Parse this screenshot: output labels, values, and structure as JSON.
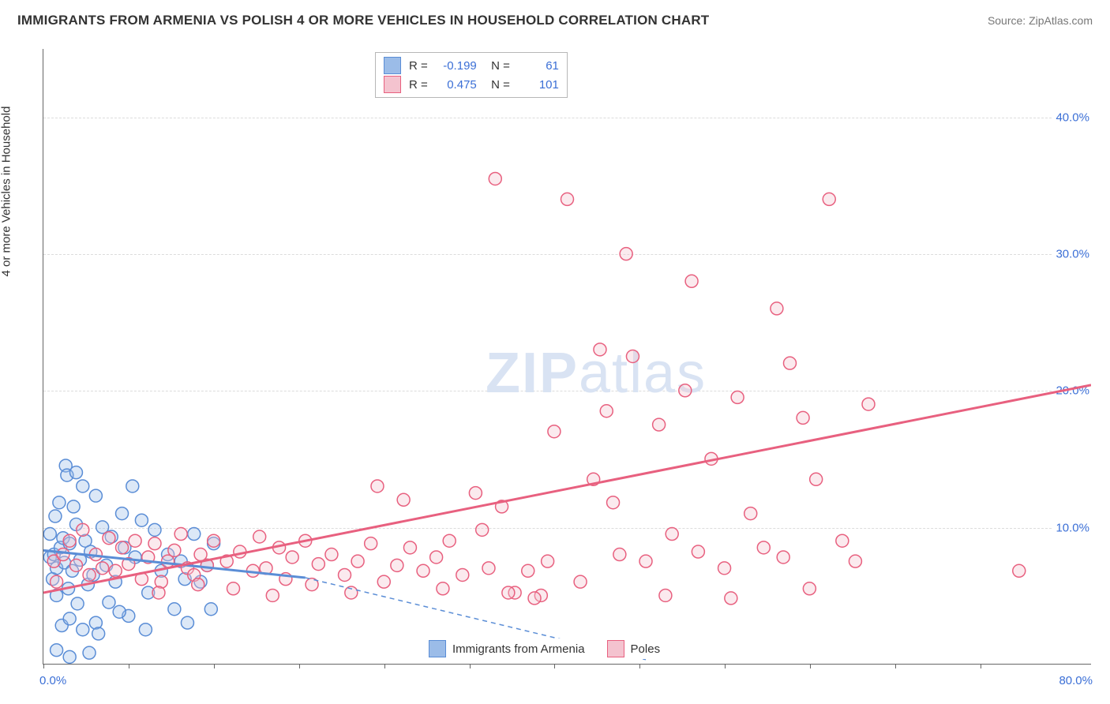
{
  "title": "IMMIGRANTS FROM ARMENIA VS POLISH 4 OR MORE VEHICLES IN HOUSEHOLD CORRELATION CHART",
  "source": "Source: ZipAtlas.com",
  "ylabel": "4 or more Vehicles in Household",
  "watermark": {
    "zip": "ZIP",
    "atlas": "atlas"
  },
  "chart": {
    "type": "scatter",
    "xlim": [
      0,
      80
    ],
    "ylim": [
      0,
      45
    ],
    "x_ticks": [
      0,
      6.5,
      13,
      19.5,
      26,
      32.5,
      39,
      45.5,
      52,
      58.5,
      65,
      71.5
    ],
    "y_grid": [
      10,
      20,
      30,
      40
    ],
    "y_grid_labels": [
      "10.0%",
      "20.0%",
      "30.0%",
      "40.0%"
    ],
    "x_min_label": "0.0%",
    "x_max_label": "80.0%",
    "background_color": "#ffffff",
    "grid_color": "#dcdcdc",
    "axis_color": "#666666",
    "tick_label_color": "#3b6fd6",
    "marker_radius": 8,
    "series": [
      {
        "name": "Immigrants from Armenia",
        "fill": "#9bbce8",
        "stroke": "#5a8dd6",
        "stats": {
          "R": "-0.199",
          "N": "61"
        },
        "trend": {
          "x1": 0,
          "y1": 8.3,
          "x2": 20,
          "y2": 6.3,
          "solid_until_x": 20,
          "dash_to_x": 46,
          "dash_to_y": 0.3
        },
        "points": [
          [
            0.5,
            7.8
          ],
          [
            0.5,
            9.5
          ],
          [
            0.7,
            6.2
          ],
          [
            0.8,
            8.0
          ],
          [
            0.9,
            10.8
          ],
          [
            1.0,
            7.0
          ],
          [
            1.0,
            5.0
          ],
          [
            1.2,
            11.8
          ],
          [
            1.3,
            8.5
          ],
          [
            1.4,
            2.8
          ],
          [
            1.5,
            9.2
          ],
          [
            1.6,
            7.4
          ],
          [
            1.7,
            14.5
          ],
          [
            1.8,
            13.8
          ],
          [
            1.9,
            5.5
          ],
          [
            2.0,
            8.8
          ],
          [
            2.0,
            3.3
          ],
          [
            2.2,
            6.8
          ],
          [
            2.3,
            11.5
          ],
          [
            2.5,
            10.2
          ],
          [
            2.6,
            4.4
          ],
          [
            2.8,
            7.6
          ],
          [
            3.0,
            13.0
          ],
          [
            3.0,
            2.5
          ],
          [
            3.2,
            9.0
          ],
          [
            3.4,
            5.8
          ],
          [
            3.6,
            8.2
          ],
          [
            3.8,
            6.5
          ],
          [
            4.0,
            12.3
          ],
          [
            4.0,
            3.0
          ],
          [
            4.5,
            10.0
          ],
          [
            4.8,
            7.2
          ],
          [
            5.0,
            4.5
          ],
          [
            5.2,
            9.3
          ],
          [
            5.5,
            6.0
          ],
          [
            6.0,
            11.0
          ],
          [
            6.2,
            8.5
          ],
          [
            6.5,
            3.5
          ],
          [
            7.0,
            7.8
          ],
          [
            7.5,
            10.5
          ],
          [
            8.0,
            5.2
          ],
          [
            8.5,
            9.8
          ],
          [
            9.0,
            6.8
          ],
          [
            9.5,
            8.0
          ],
          [
            10.0,
            4.0
          ],
          [
            10.5,
            7.5
          ],
          [
            10.8,
            6.2
          ],
          [
            11.0,
            3.0
          ],
          [
            11.5,
            9.5
          ],
          [
            12.0,
            6.0
          ],
          [
            12.8,
            4.0
          ],
          [
            12.5,
            7.2
          ],
          [
            13.0,
            8.8
          ],
          [
            1.0,
            1.0
          ],
          [
            2.5,
            14.0
          ],
          [
            3.5,
            0.8
          ],
          [
            4.2,
            2.2
          ],
          [
            5.8,
            3.8
          ],
          [
            6.8,
            13.0
          ],
          [
            7.8,
            2.5
          ],
          [
            2.0,
            0.5
          ]
        ]
      },
      {
        "name": "Poles",
        "fill": "#f4c3cf",
        "stroke": "#e8607f",
        "stats": {
          "R": "0.475",
          "N": "101"
        },
        "trend": {
          "x1": 0,
          "y1": 5.2,
          "x2": 80,
          "y2": 20.4
        },
        "points": [
          [
            0.8,
            7.5
          ],
          [
            1.0,
            6.0
          ],
          [
            1.5,
            8.0
          ],
          [
            2.0,
            9.0
          ],
          [
            2.5,
            7.2
          ],
          [
            3.0,
            9.8
          ],
          [
            3.5,
            6.5
          ],
          [
            4.0,
            8.0
          ],
          [
            4.5,
            7.0
          ],
          [
            5.0,
            9.2
          ],
          [
            5.5,
            6.8
          ],
          [
            6.0,
            8.5
          ],
          [
            6.5,
            7.3
          ],
          [
            7.0,
            9.0
          ],
          [
            7.5,
            6.2
          ],
          [
            8.0,
            7.8
          ],
          [
            8.5,
            8.8
          ],
          [
            9.0,
            6.0
          ],
          [
            9.5,
            7.5
          ],
          [
            10.0,
            8.3
          ],
          [
            10.5,
            9.5
          ],
          [
            11.0,
            7.0
          ],
          [
            11.5,
            6.5
          ],
          [
            12.0,
            8.0
          ],
          [
            12.5,
            7.2
          ],
          [
            13.0,
            9.0
          ],
          [
            14.0,
            7.5
          ],
          [
            15.0,
            8.2
          ],
          [
            16.0,
            6.8
          ],
          [
            16.5,
            9.3
          ],
          [
            17.0,
            7.0
          ],
          [
            18.0,
            8.5
          ],
          [
            18.5,
            6.2
          ],
          [
            19.0,
            7.8
          ],
          [
            20.0,
            9.0
          ],
          [
            21.0,
            7.3
          ],
          [
            22.0,
            8.0
          ],
          [
            23.0,
            6.5
          ],
          [
            24.0,
            7.5
          ],
          [
            25.0,
            8.8
          ],
          [
            25.5,
            13.0
          ],
          [
            26.0,
            6.0
          ],
          [
            27.0,
            7.2
          ],
          [
            28.0,
            8.5
          ],
          [
            29.0,
            6.8
          ],
          [
            30.0,
            7.8
          ],
          [
            31.0,
            9.0
          ],
          [
            32.0,
            6.5
          ],
          [
            33.0,
            12.5
          ],
          [
            34.0,
            7.0
          ],
          [
            34.5,
            35.5
          ],
          [
            35.0,
            11.5
          ],
          [
            36.0,
            5.2
          ],
          [
            37.0,
            6.8
          ],
          [
            38.0,
            5.0
          ],
          [
            38.5,
            7.5
          ],
          [
            39.0,
            17.0
          ],
          [
            40.0,
            34.0
          ],
          [
            41.0,
            6.0
          ],
          [
            42.0,
            13.5
          ],
          [
            42.5,
            23.0
          ],
          [
            43.0,
            18.5
          ],
          [
            44.0,
            8.0
          ],
          [
            44.5,
            30.0
          ],
          [
            45.0,
            22.5
          ],
          [
            46.0,
            7.5
          ],
          [
            47.0,
            17.5
          ],
          [
            48.0,
            9.5
          ],
          [
            49.0,
            20.0
          ],
          [
            49.5,
            28.0
          ],
          [
            50.0,
            8.2
          ],
          [
            51.0,
            15.0
          ],
          [
            52.0,
            7.0
          ],
          [
            53.0,
            19.5
          ],
          [
            54.0,
            11.0
          ],
          [
            55.0,
            8.5
          ],
          [
            56.0,
            26.0
          ],
          [
            56.5,
            7.8
          ],
          [
            57.0,
            22.0
          ],
          [
            58.0,
            18.0
          ],
          [
            58.5,
            5.5
          ],
          [
            59.0,
            13.5
          ],
          [
            60.0,
            34.0
          ],
          [
            61.0,
            9.0
          ],
          [
            62.0,
            7.5
          ],
          [
            63.0,
            19.0
          ],
          [
            74.5,
            6.8
          ],
          [
            52.5,
            4.8
          ],
          [
            47.5,
            5.0
          ],
          [
            43.5,
            11.8
          ],
          [
            37.5,
            4.8
          ],
          [
            35.5,
            5.2
          ],
          [
            33.5,
            9.8
          ],
          [
            30.5,
            5.5
          ],
          [
            27.5,
            12.0
          ],
          [
            23.5,
            5.2
          ],
          [
            20.5,
            5.8
          ],
          [
            17.5,
            5.0
          ],
          [
            14.5,
            5.5
          ],
          [
            11.8,
            5.8
          ],
          [
            8.8,
            5.2
          ]
        ]
      }
    ]
  },
  "bottom_legend": [
    {
      "label": "Immigrants from Armenia",
      "fill": "#9bbce8",
      "stroke": "#5a8dd6"
    },
    {
      "label": "Poles",
      "fill": "#f4c3cf",
      "stroke": "#e8607f"
    }
  ]
}
